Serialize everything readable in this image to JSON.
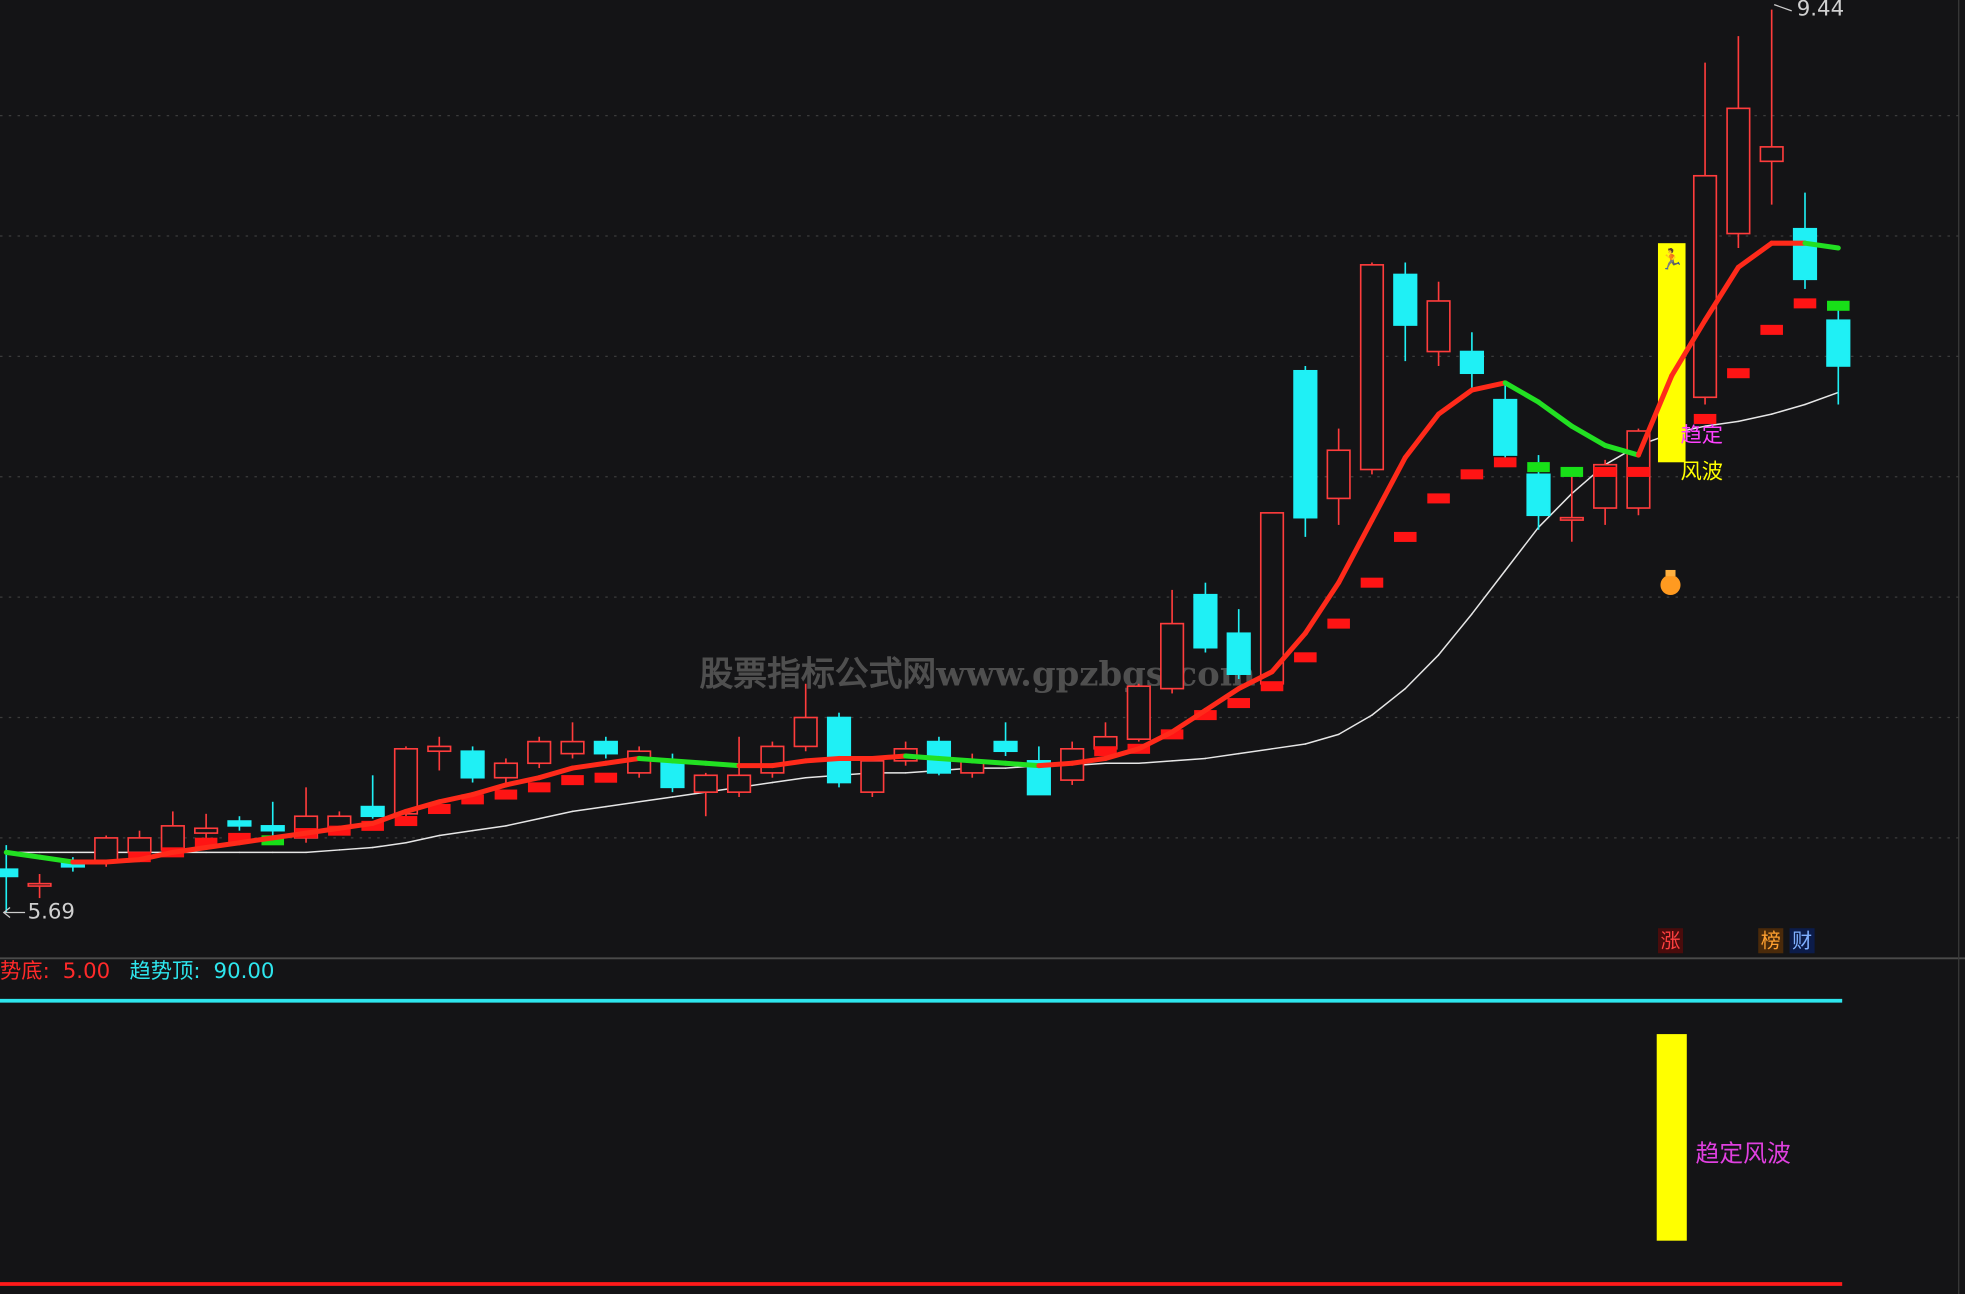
{
  "chart_data": {
    "type": "candlestick",
    "watermark": "股票指标公式网www.gpzbgs.com",
    "ylim": [
      5.5,
      9.48
    ],
    "grid_levels": [
      6,
      6.5,
      7,
      7.5,
      8,
      8.5,
      9
    ],
    "up_color": "#ff3c3c",
    "down_color": "#1ff0f5",
    "candles": {
      "open": [
        5.87,
        5.8,
        5.9,
        5.9,
        5.94,
        5.95,
        6.02,
        6.07,
        6.05,
        6.0,
        6.04,
        6.13,
        6.1,
        6.36,
        6.36,
        6.25,
        6.31,
        6.35,
        6.4,
        6.27,
        6.31,
        6.19,
        6.19,
        6.27,
        6.38,
        6.5,
        6.19,
        6.32,
        6.4,
        6.27,
        6.4,
        6.32,
        6.24,
        6.37,
        6.41,
        6.62,
        7.01,
        6.85,
        6.64,
        7.94,
        7.41,
        7.53,
        8.34,
        8.02,
        8.02,
        7.82,
        7.51,
        7.32,
        7.37,
        7.37,
        7.6,
        7.83,
        8.51,
        8.81,
        8.53,
        8.15
      ],
      "high": [
        5.97,
        5.85,
        5.92,
        6.01,
        6.03,
        6.11,
        6.1,
        6.09,
        6.15,
        6.21,
        6.11,
        6.26,
        6.38,
        6.42,
        6.38,
        6.33,
        6.42,
        6.48,
        6.42,
        6.38,
        6.35,
        6.27,
        6.42,
        6.4,
        6.64,
        6.52,
        6.34,
        6.4,
        6.42,
        6.35,
        6.48,
        6.38,
        6.4,
        6.48,
        6.64,
        7.03,
        7.06,
        6.95,
        7.35,
        7.96,
        7.7,
        8.39,
        8.39,
        8.31,
        8.1,
        7.89,
        7.59,
        7.51,
        7.57,
        7.7,
        7.72,
        9.22,
        9.33,
        9.44,
        8.68,
        8.22
      ],
      "low": [
        5.69,
        5.75,
        5.86,
        5.88,
        5.92,
        5.93,
        6.0,
        6.03,
        6.01,
        5.98,
        6.02,
        6.08,
        6.08,
        6.28,
        6.23,
        6.23,
        6.29,
        6.33,
        6.33,
        6.25,
        6.19,
        6.09,
        6.17,
        6.25,
        6.36,
        6.21,
        6.17,
        6.3,
        6.26,
        6.25,
        6.34,
        6.18,
        6.22,
        6.35,
        6.4,
        6.6,
        6.77,
        6.66,
        6.62,
        7.25,
        7.3,
        7.51,
        7.98,
        7.96,
        7.87,
        7.57,
        7.28,
        7.23,
        7.3,
        7.34,
        7.58,
        7.8,
        8.45,
        8.63,
        8.28,
        7.8
      ],
      "close": [
        5.84,
        5.81,
        5.88,
        6.0,
        6.0,
        6.05,
        6.04,
        6.05,
        6.03,
        6.09,
        6.09,
        6.09,
        6.37,
        6.38,
        6.25,
        6.31,
        6.4,
        6.4,
        6.35,
        6.36,
        6.21,
        6.26,
        6.26,
        6.38,
        6.5,
        6.23,
        6.32,
        6.37,
        6.27,
        6.32,
        6.36,
        6.18,
        6.37,
        6.42,
        6.63,
        6.89,
        6.79,
        6.68,
        7.35,
        7.33,
        7.61,
        8.38,
        8.13,
        8.23,
        7.93,
        7.59,
        7.34,
        7.33,
        7.55,
        7.69,
        7.68,
        8.75,
        9.03,
        8.87,
        8.32,
        7.96
      ]
    },
    "lines": [
      {
        "color": "#ff2a1a",
        "down_color": "#22e022",
        "values": [
          5.94,
          5.92,
          5.9,
          5.9,
          5.91,
          5.94,
          5.96,
          5.98,
          6.0,
          6.02,
          6.04,
          6.06,
          6.11,
          6.15,
          6.18,
          6.22,
          6.25,
          6.29,
          6.31,
          6.33,
          6.32,
          6.31,
          6.3,
          6.3,
          6.32,
          6.33,
          6.33,
          6.34,
          6.33,
          6.32,
          6.31,
          6.3,
          6.31,
          6.33,
          6.37,
          6.44,
          6.53,
          6.62,
          6.69,
          6.85,
          7.06,
          7.32,
          7.58,
          7.76,
          7.86,
          7.89,
          7.81,
          7.71,
          7.63,
          7.59,
          7.92,
          8.15,
          8.37,
          8.47,
          8.47,
          8.45
        ]
      },
      {
        "color": "#e6e6e6",
        "values": [
          5.94,
          5.94,
          5.94,
          5.94,
          5.94,
          5.94,
          5.94,
          5.94,
          5.94,
          5.94,
          5.95,
          5.96,
          5.98,
          6.01,
          6.03,
          6.05,
          6.08,
          6.11,
          6.13,
          6.15,
          6.17,
          6.19,
          6.21,
          6.23,
          6.25,
          6.26,
          6.27,
          6.27,
          6.28,
          6.29,
          6.29,
          6.3,
          6.3,
          6.31,
          6.31,
          6.32,
          6.33,
          6.35,
          6.37,
          6.39,
          6.43,
          6.51,
          6.62,
          6.76,
          6.93,
          7.11,
          7.29,
          7.43,
          7.55,
          7.63,
          7.68,
          7.71,
          7.73,
          7.76,
          7.8,
          7.85
        ]
      }
    ],
    "blocks": {
      "up_color": "#ff1414",
      "down_color": "#18e018",
      "values": [
        null,
        null,
        null,
        null,
        5.92,
        5.94,
        5.98,
        6.0,
        5.99,
        6.02,
        6.03,
        6.05,
        6.07,
        6.12,
        6.16,
        6.18,
        6.21,
        6.24,
        6.25,
        null,
        null,
        null,
        null,
        null,
        null,
        null,
        null,
        null,
        null,
        null,
        null,
        null,
        null,
        6.36,
        6.37,
        6.43,
        6.51,
        6.56,
        6.63,
        6.75,
        6.89,
        7.06,
        7.25,
        7.41,
        7.51,
        7.56,
        7.54,
        7.52,
        7.52,
        7.52,
        7.6,
        7.74,
        7.93,
        8.11,
        8.22,
        8.21
      ]
    },
    "signal": {
      "index": 50,
      "low": 7.56,
      "high": 8.47,
      "color": "#ffff00",
      "texts": [
        "趋定",
        "风波"
      ]
    },
    "badges": [
      "涨",
      "榜",
      "财"
    ],
    "indicator": {
      "ylim": [
        2,
        102
      ],
      "lines": [
        {
          "name": "势底:",
          "value": 5,
          "label": "5.00",
          "color": "#ff1a1a"
        },
        {
          "name": "趋势顶:",
          "value": 90,
          "label": "90.00",
          "color": "#2ee6ee"
        }
      ],
      "bar": {
        "low": 18,
        "high": 80,
        "color": "#ffff00",
        "label": "趋定风波",
        "label_color": "#e040e0"
      }
    }
  }
}
